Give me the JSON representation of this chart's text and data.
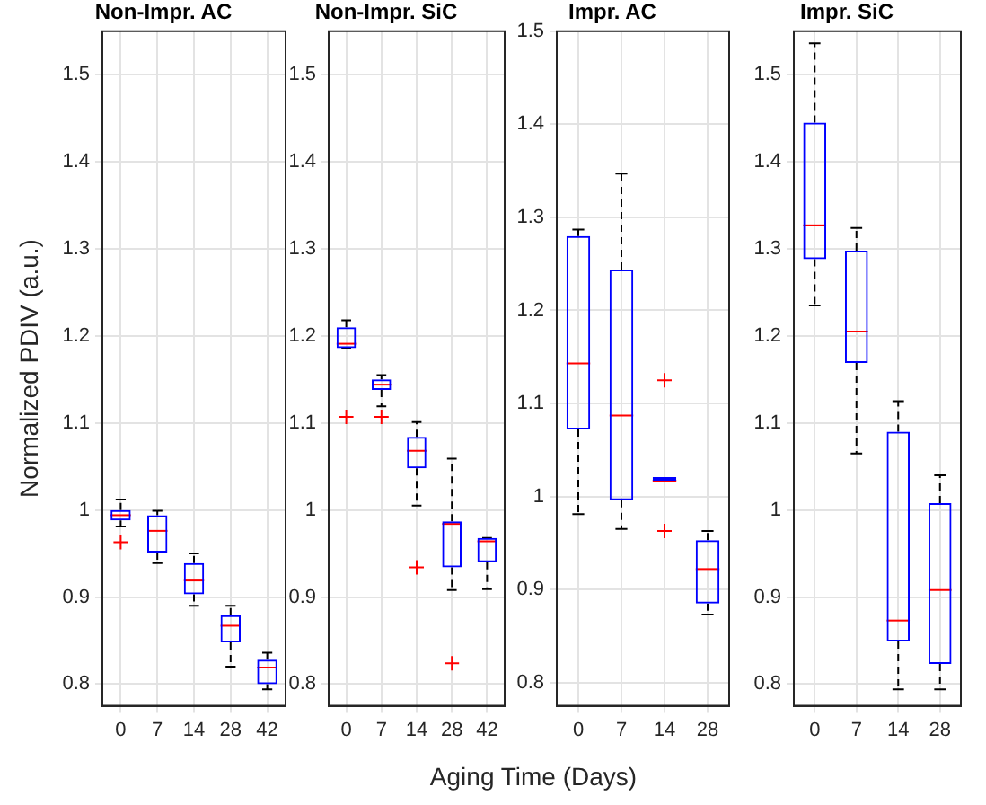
{
  "chart_data": [
    {
      "type": "box",
      "title": "Non-Impr. AC",
      "ylabel": "Normalized PDIV (a.u.)",
      "xlabel": "Aging Time (Days)",
      "categories": [
        "0",
        "7",
        "14",
        "28",
        "42"
      ],
      "ylim": [
        0.775,
        1.55
      ],
      "yticks": [
        0.8,
        0.9,
        1,
        1.1,
        1.2,
        1.3,
        1.4,
        1.5
      ],
      "grid": true,
      "series": [
        {
          "color": "#0000ff",
          "boxes": [
            {
              "low": 0.981,
              "q1": 0.988,
              "median": 0.994,
              "q3": 1.0,
              "high": 1.012,
              "outliers": [
                0.963
              ]
            },
            {
              "low": 0.939,
              "q1": 0.951,
              "median": 0.976,
              "q3": 0.994,
              "high": 0.999
            },
            {
              "low": 0.89,
              "q1": 0.903,
              "median": 0.919,
              "q3": 0.939,
              "high": 0.95
            },
            {
              "low": 0.82,
              "q1": 0.848,
              "median": 0.867,
              "q3": 0.879,
              "high": 0.89
            },
            {
              "low": 0.794,
              "q1": 0.8,
              "median": 0.819,
              "q3": 0.828,
              "high": 0.836
            }
          ]
        }
      ]
    },
    {
      "type": "box",
      "title": "Non-Impr. SiC",
      "categories": [
        "0",
        "7",
        "14",
        "28",
        "42"
      ],
      "ylim": [
        0.775,
        1.55
      ],
      "yticks": [
        0.8,
        0.9,
        1,
        1.1,
        1.2,
        1.3,
        1.4,
        1.5
      ],
      "grid": true,
      "series": [
        {
          "color": "#0000ff",
          "boxes": [
            {
              "low": 1.186,
              "q1": 1.186,
              "median": 1.191,
              "q3": 1.21,
              "high": 1.218,
              "outliers": [
                1.107
              ]
            },
            {
              "low": 1.119,
              "q1": 1.138,
              "median": 1.144,
              "q3": 1.15,
              "high": 1.155,
              "outliers": [
                1.107
              ]
            },
            {
              "low": 1.005,
              "q1": 1.048,
              "median": 1.068,
              "q3": 1.084,
              "high": 1.101,
              "outliers": [
                0.934
              ]
            },
            {
              "low": 0.908,
              "q1": 0.934,
              "median": 0.984,
              "q3": 0.987,
              "high": 1.059,
              "outliers": [
                0.824
              ]
            },
            {
              "low": 0.909,
              "q1": 0.94,
              "median": 0.964,
              "q3": 0.968,
              "high": 0.968
            }
          ]
        }
      ]
    },
    {
      "type": "box",
      "title": "Impr. AC",
      "categories": [
        "0",
        "7",
        "14",
        "28"
      ],
      "ylim": [
        0.775,
        1.5
      ],
      "yticks": [
        0.8,
        0.9,
        1,
        1.1,
        1.2,
        1.3,
        1.4,
        1.5
      ],
      "grid": true,
      "series": [
        {
          "color": "#0000ff",
          "boxes": [
            {
              "low": 0.981,
              "q1": 1.072,
              "median": 1.143,
              "q3": 1.28,
              "high": 1.287
            },
            {
              "low": 0.965,
              "q1": 0.996,
              "median": 1.087,
              "q3": 1.244,
              "high": 1.347
            },
            {
              "low": 1.017,
              "q1": 1.017,
              "median": 1.017,
              "q3": 1.017,
              "high": 1.017,
              "outliers": [
                1.125,
                0.963
              ]
            },
            {
              "low": 0.873,
              "q1": 0.885,
              "median": 0.922,
              "q3": 0.953,
              "high": 0.963
            }
          ]
        }
      ]
    },
    {
      "type": "box",
      "title": "Impr. SiC",
      "categories": [
        "0",
        "7",
        "14",
        "28"
      ],
      "ylim": [
        0.775,
        1.55
      ],
      "yticks": [
        0.8,
        0.9,
        1,
        1.1,
        1.2,
        1.3,
        1.4,
        1.5
      ],
      "grid": true,
      "series": [
        {
          "color": "#0000ff",
          "boxes": [
            {
              "low": 1.235,
              "q1": 1.288,
              "median": 1.327,
              "q3": 1.445,
              "high": 1.536
            },
            {
              "low": 1.065,
              "q1": 1.169,
              "median": 1.205,
              "q3": 1.298,
              "high": 1.324
            },
            {
              "low": 0.794,
              "q1": 0.849,
              "median": 0.873,
              "q3": 1.09,
              "high": 1.125
            },
            {
              "low": 0.794,
              "q1": 0.823,
              "median": 0.908,
              "q3": 1.008,
              "high": 1.04
            }
          ]
        }
      ]
    }
  ]
}
